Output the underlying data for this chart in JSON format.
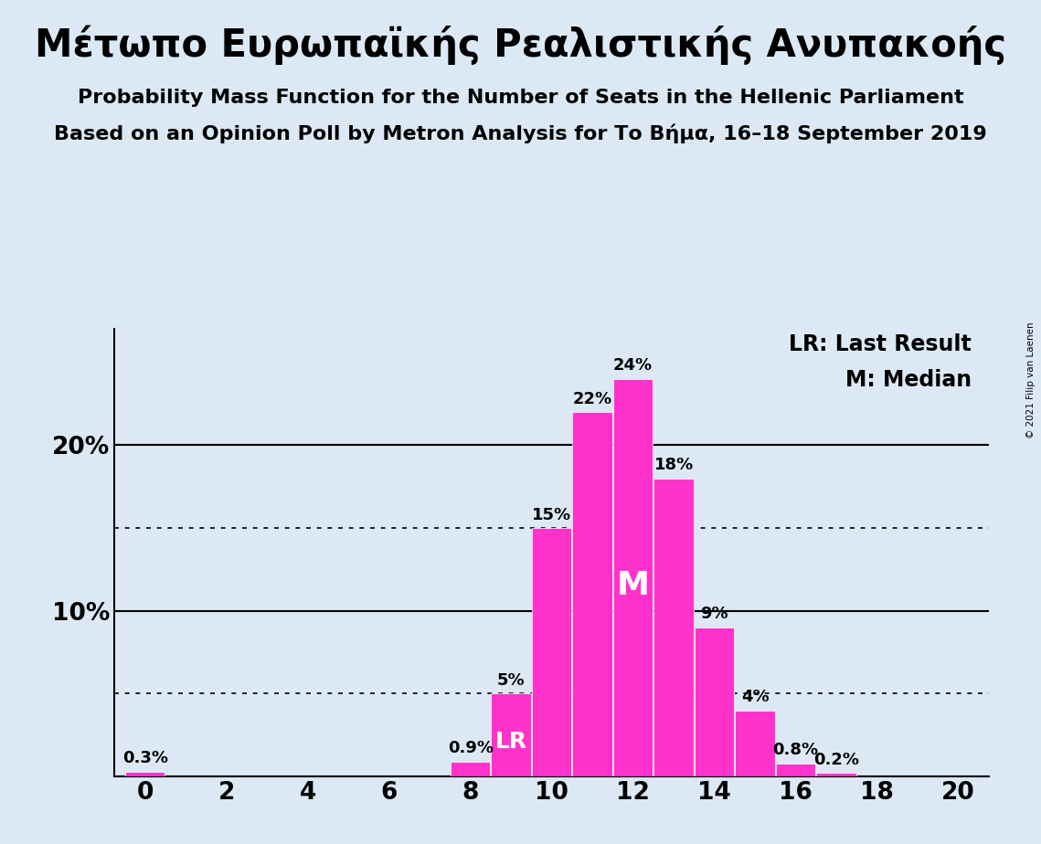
{
  "title_greek": "Μέτωπο Ευρωπαϊκής Ρεαλιστικής Ανυπακοής",
  "subtitle1": "Probability Mass Function for the Number of Seats in the Hellenic Parliament",
  "subtitle2": "Based on an Opinion Poll by Metron Analysis for Το Βήμα, 16–18 September 2019",
  "copyright": "© 2021 Filip van Laenen",
  "seats": [
    0,
    1,
    2,
    3,
    4,
    5,
    6,
    7,
    8,
    9,
    10,
    11,
    12,
    13,
    14,
    15,
    16,
    17,
    18,
    19,
    20
  ],
  "probabilities": [
    0.3,
    0,
    0,
    0,
    0,
    0,
    0,
    0,
    0.9,
    5,
    15,
    22,
    24,
    18,
    9,
    4,
    0.8,
    0.2,
    0,
    0,
    0
  ],
  "bar_color": "#FF33CC",
  "background_color": "#DCE9F5",
  "median": 12,
  "last_result": 9,
  "legend_lr": "LR: Last Result",
  "legend_m": "M: Median",
  "dotted_lines": [
    5,
    15
  ],
  "solid_lines": [
    10,
    20
  ],
  "xlabel_ticks": [
    0,
    2,
    4,
    6,
    8,
    10,
    12,
    14,
    16,
    18,
    20
  ],
  "ylim": [
    0,
    27
  ],
  "title_fontsize": 30,
  "subtitle_fontsize": 16,
  "bar_label_fontsize": 13,
  "axis_label_fontsize": 19,
  "legend_fontsize": 17,
  "median_label_fontsize": 26,
  "lr_label_fontsize": 18
}
